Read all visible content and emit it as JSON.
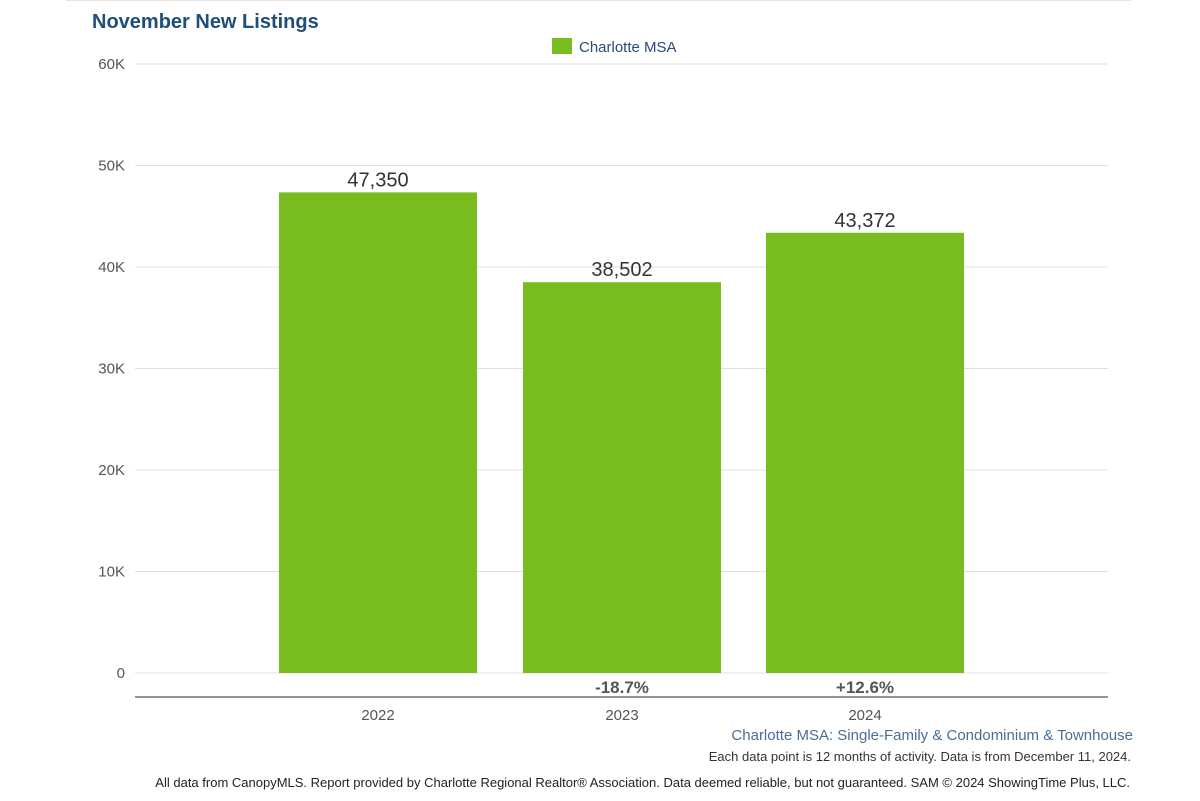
{
  "chart_data": {
    "type": "bar",
    "title": "November New Listings",
    "legend": {
      "label": "Charlotte MSA",
      "color": "#78bc20",
      "position": "top-center"
    },
    "categories": [
      "2022",
      "2023",
      "2024"
    ],
    "series": [
      {
        "name": "Charlotte MSA",
        "values": [
          47350,
          38502,
          43372
        ]
      }
    ],
    "value_labels": [
      "47,350",
      "38,502",
      "43,372"
    ],
    "change_labels": [
      "",
      "-18.7%",
      "+12.6%"
    ],
    "ylim": [
      0,
      60000
    ],
    "y_ticks": [
      0,
      10000,
      20000,
      30000,
      40000,
      50000,
      60000
    ],
    "y_tick_labels": [
      "0",
      "10K",
      "20K",
      "30K",
      "40K",
      "50K",
      "60K"
    ],
    "grid": true,
    "bar_color": "#78bc20",
    "xlabel": "",
    "ylabel": ""
  },
  "subtitle": "Charlotte MSA: Single-Family & Condominium & Townhouse",
  "note": "Each data point is 12 months of activity. Data is from December 11, 2024.",
  "footer": "All data from CanopyMLS. Report provided by Charlotte Regional Realtor® Association. Data deemed reliable, but not guaranteed. SAM © 2024 ShowingTime Plus, LLC.",
  "colors": {
    "title": "#1f4e79",
    "subtitle": "#4a6e95"
  }
}
